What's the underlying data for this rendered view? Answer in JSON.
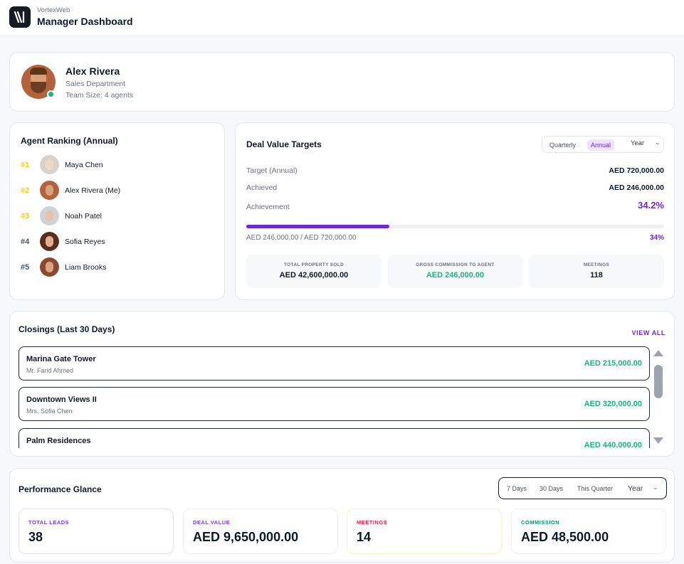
{
  "app": {
    "brand": "VortexWeb",
    "title": "Manager Dashboard"
  },
  "profile": {
    "name": "Alex Rivera",
    "department": "Sales Department",
    "team_size": "Team Size: 4 agents"
  },
  "ranking": {
    "title": "Agent Ranking (Annual)",
    "agents": [
      {
        "rank": "#1",
        "name": "Maya Chen",
        "rank_color": "#facc15"
      },
      {
        "rank": "#2",
        "name": "Alex Rivera (Me)",
        "rank_color": "#facc15"
      },
      {
        "rank": "#3",
        "name": "Noah Patel",
        "rank_color": "#facc15"
      },
      {
        "rank": "#4",
        "name": "Sofia Reyes",
        "rank_color": "#4b5563"
      },
      {
        "rank": "#5",
        "name": "Liam Brooks",
        "rank_color": "#4b5563"
      }
    ]
  },
  "targets": {
    "title": "Deal Value Targets",
    "periods": [
      "Quarterly",
      "Annual"
    ],
    "active_period": "Annual",
    "year_label": "Year",
    "target_label": "Target (Annual)",
    "target_value": "AED 720,000.00",
    "achieved_label": "Achieved",
    "achieved_value": "AED 246,000.00",
    "achievement_label": "Achievement",
    "achievement_value": "34.2%",
    "progress_fraction": 0.342,
    "progress_caption": "AED 246,000.00 / AED 720,000.00",
    "progress_pct": "34%",
    "stats": [
      {
        "label": "TOTAL PROPERTY SOLD",
        "value": "AED 42,600,000.00",
        "color": "#111827"
      },
      {
        "label": "GROSS COMMISSION TO AGENT",
        "value": "AED 246,000.00",
        "color": "#10b981"
      },
      {
        "label": "MEETINGS",
        "value": "118",
        "color": "#111827"
      }
    ]
  },
  "closings": {
    "title": "Closings (Last 30 Days)",
    "view_all": "VIEW ALL",
    "items": [
      {
        "title": "Marina Gate Tower",
        "client": "Mr. Farid Ahmed",
        "amount": "AED 215,000.00"
      },
      {
        "title": "Downtown Views II",
        "client": "Mrs. Sofia Chen",
        "amount": "AED 320,000.00"
      },
      {
        "title": "Palm Residences",
        "client": "",
        "amount": "AED 440,000.00"
      }
    ]
  },
  "performance": {
    "title": "Performance Glance",
    "ranges": [
      "7 Days",
      "30 Days",
      "This Quarter"
    ],
    "year_label": "Year",
    "kpis": [
      {
        "label": "TOTAL LEADS",
        "value": "38",
        "color": "#7c3aed",
        "border": "#e9ddfb"
      },
      {
        "label": "DEAL VALUE",
        "value": "AED 9,650,000.00",
        "color": "#7c3aed",
        "border": "#eef0f4"
      },
      {
        "label": "MEETINGS",
        "value": "14",
        "color": "#e11d48",
        "border": "#fbefc9"
      },
      {
        "label": "COMMISSION",
        "value": "AED 48,500.00",
        "color": "#059669",
        "border": "#eef0f4"
      }
    ]
  }
}
